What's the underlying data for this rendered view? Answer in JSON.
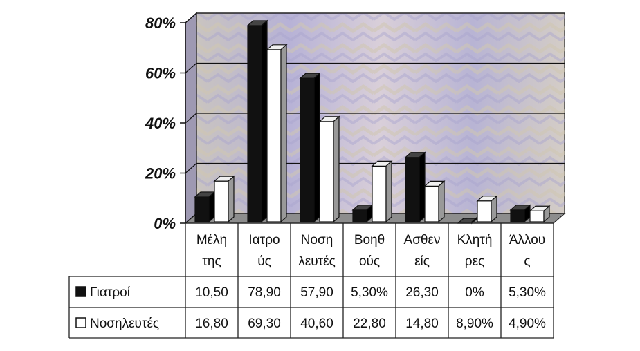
{
  "chart_data": {
    "type": "bar",
    "categories": [
      [
        "Μέλη",
        "της"
      ],
      [
        "Ιατρο",
        "ύς"
      ],
      [
        "Νοση",
        "λευτές"
      ],
      [
        "Βοηθ",
        "ούς"
      ],
      [
        "Ασθεν",
        "είς"
      ],
      [
        "Κλητή",
        "ρες"
      ],
      [
        "Άλλου",
        "ς"
      ]
    ],
    "yticks": [
      "0%",
      "20%",
      "40%",
      "60%",
      "80%"
    ],
    "ylim": [
      0,
      80
    ],
    "grid": true,
    "series": [
      {
        "name": "Γιατροί",
        "color": "#111111",
        "values": [
          10.5,
          78.9,
          57.9,
          5.3,
          26.3,
          0,
          5.3
        ],
        "labels": [
          "10,50",
          "78,90",
          "57,90",
          "5,30%",
          "26,30",
          "0%",
          "5,30%"
        ]
      },
      {
        "name": "Νοσηλευτές",
        "color": "#ffffff",
        "values": [
          16.8,
          69.3,
          40.6,
          22.8,
          14.8,
          8.9,
          4.9
        ],
        "labels": [
          "16,80",
          "69,30",
          "40,60",
          "22,80",
          "14,80",
          "8,90%",
          "4,90%"
        ]
      }
    ]
  }
}
